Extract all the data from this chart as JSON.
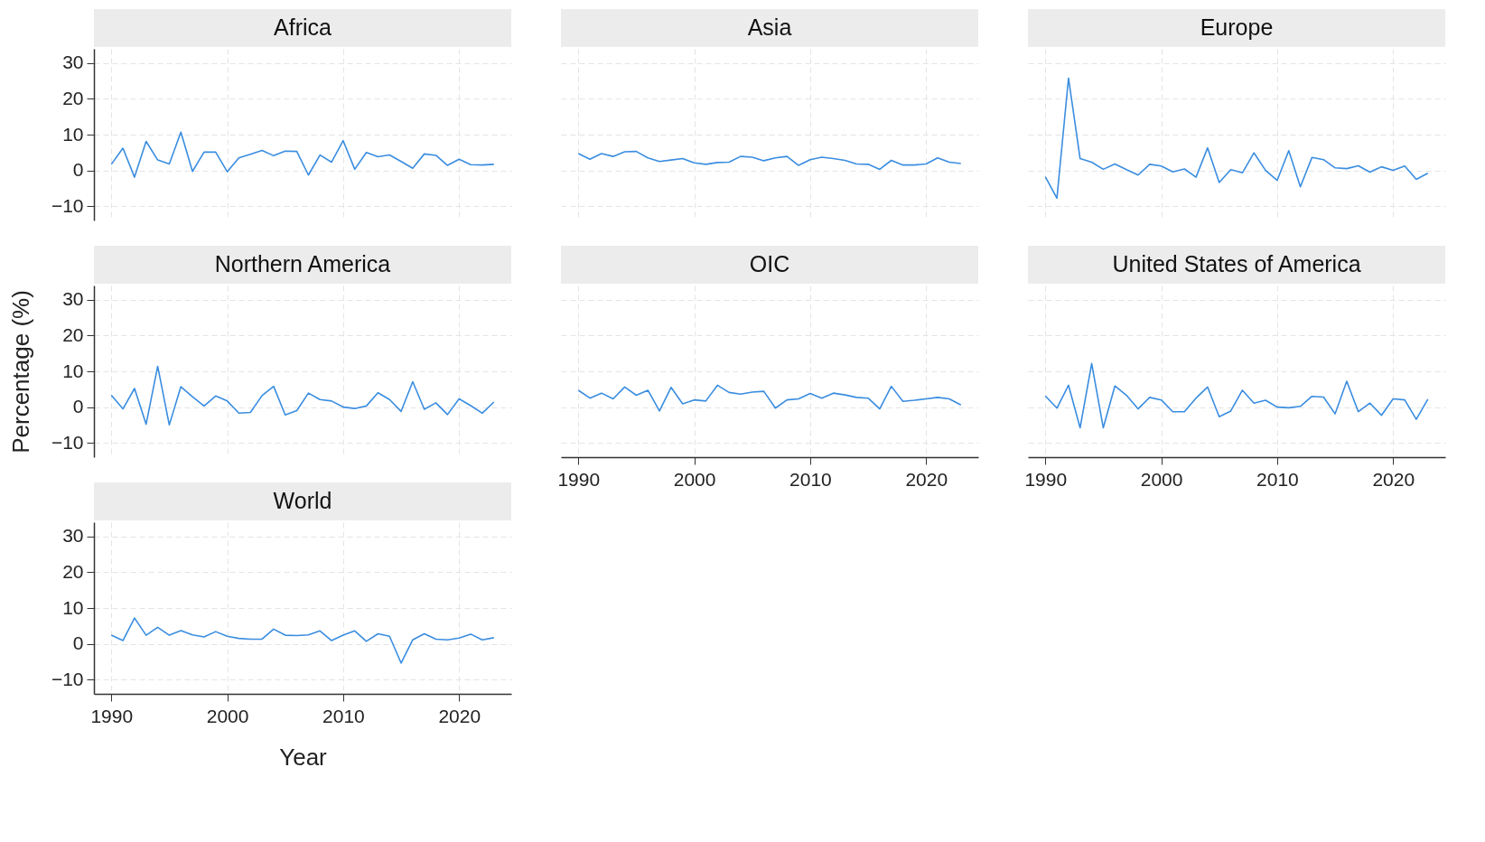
{
  "chart_data": [
    {
      "type": "line",
      "title": "Africa",
      "tick_labels": "y",
      "grid": true,
      "xlim": [
        1988.5,
        2024.5
      ],
      "ylim": [
        -14,
        34
      ],
      "xticks": [
        1990,
        2000,
        2010,
        2020
      ],
      "yticks": [
        -10,
        0,
        10,
        20,
        30
      ],
      "color": "#3a8de0",
      "x": [
        1990,
        1991,
        1992,
        1993,
        1994,
        1995,
        1996,
        1997,
        1998,
        1999,
        2000,
        2001,
        2002,
        2003,
        2004,
        2005,
        2006,
        2007,
        2008,
        2009,
        2010,
        2011,
        2012,
        2013,
        2014,
        2015,
        2016,
        2017,
        2018,
        2019,
        2020,
        2021,
        2022,
        2023
      ],
      "values": [
        1.7,
        6.2,
        -1.9,
        8.1,
        2.9,
        1.8,
        10.7,
        -0.3,
        5.1,
        5.1,
        -0.4,
        3.5,
        4.5,
        5.6,
        4.1,
        5.4,
        5.3,
        -1.3,
        4.3,
        2.3,
        8.3,
        0.3,
        5.0,
        3.8,
        4.3,
        2.5,
        0.6,
        4.6,
        4.2,
        1.4,
        3.1,
        1.6,
        1.5,
        1.7
      ]
    },
    {
      "type": "line",
      "title": "Asia",
      "tick_labels": false,
      "grid": true,
      "xlim": [
        1988.5,
        2024.5
      ],
      "ylim": [
        -14,
        34
      ],
      "xticks": [
        1990,
        2000,
        2010,
        2020
      ],
      "yticks": [
        -10,
        0,
        10,
        20,
        30
      ],
      "color": "#3a8de0",
      "x": [
        1990,
        1991,
        1992,
        1993,
        1994,
        1995,
        1996,
        1997,
        1998,
        1999,
        2000,
        2001,
        2002,
        2003,
        2004,
        2005,
        2006,
        2007,
        2008,
        2009,
        2010,
        2011,
        2012,
        2013,
        2014,
        2015,
        2016,
        2017,
        2018,
        2019,
        2020,
        2021,
        2022,
        2023
      ],
      "values": [
        4.7,
        3.1,
        4.7,
        3.9,
        5.2,
        5.3,
        3.5,
        2.5,
        2.9,
        3.3,
        2.1,
        1.7,
        2.2,
        2.3,
        3.9,
        3.7,
        2.7,
        3.5,
        3.9,
        1.4,
        3.0,
        3.7,
        3.3,
        2.8,
        1.8,
        1.7,
        0.3,
        2.8,
        1.5,
        1.5,
        1.8,
        3.5,
        2.3,
        1.9
      ]
    },
    {
      "type": "line",
      "title": "Europe",
      "tick_labels": false,
      "grid": true,
      "xlim": [
        1988.5,
        2024.5
      ],
      "ylim": [
        -14,
        34
      ],
      "xticks": [
        1990,
        2000,
        2010,
        2020
      ],
      "yticks": [
        -10,
        0,
        10,
        20,
        30
      ],
      "color": "#3a8de0",
      "x": [
        1990,
        1991,
        1992,
        1993,
        1994,
        1995,
        1996,
        1997,
        1998,
        1999,
        2000,
        2001,
        2002,
        2003,
        2004,
        2005,
        2006,
        2007,
        2008,
        2009,
        2010,
        2011,
        2012,
        2013,
        2014,
        2015,
        2016,
        2017,
        2018,
        2019,
        2020,
        2021,
        2022,
        2023
      ],
      "values": [
        -1.8,
        -7.8,
        25.8,
        3.3,
        2.3,
        0.3,
        1.8,
        0.2,
        -1.3,
        1.7,
        1.2,
        -0.4,
        0.4,
        -1.9,
        6.3,
        -3.4,
        0.2,
        -0.7,
        4.9,
        0,
        -2.8,
        5.5,
        -4.6,
        3.6,
        3.0,
        0.7,
        0.5,
        1.3,
        -0.5,
        1.0,
        0,
        1.2,
        -2.5,
        -0.8
      ]
    },
    {
      "type": "line",
      "title": "Northern America",
      "ylabel": "Percentage (%)",
      "tick_labels": "y",
      "grid": true,
      "xlim": [
        1988.5,
        2024.5
      ],
      "ylim": [
        -14,
        34
      ],
      "xticks": [
        1990,
        2000,
        2010,
        2020
      ],
      "yticks": [
        -10,
        0,
        10,
        20,
        30
      ],
      "color": "#3a8de0",
      "x": [
        1990,
        1991,
        1992,
        1993,
        1994,
        1995,
        1996,
        1997,
        1998,
        1999,
        2000,
        2001,
        2002,
        2003,
        2004,
        2005,
        2006,
        2007,
        2008,
        2009,
        2010,
        2011,
        2012,
        2013,
        2014,
        2015,
        2016,
        2017,
        2018,
        2019,
        2020,
        2021,
        2022,
        2023
      ],
      "values": [
        3.3,
        -0.5,
        5.2,
        -4.8,
        11.4,
        -5.0,
        5.7,
        2.9,
        0.3,
        3.1,
        1.7,
        -1.7,
        -1.5,
        3.2,
        5.8,
        -2.2,
        -1.0,
        3.9,
        2.1,
        1.7,
        0,
        -0.4,
        0.3,
        4.0,
        2.1,
        -1.2,
        7.1,
        -0.6,
        1.2,
        -2.1,
        2.3,
        0.4,
        -1.7,
        1.4
      ]
    },
    {
      "type": "line",
      "title": "OIC",
      "tick_labels": "x",
      "grid": true,
      "xlim": [
        1988.5,
        2024.5
      ],
      "ylim": [
        -14,
        34
      ],
      "xticks": [
        1990,
        2000,
        2010,
        2020
      ],
      "yticks": [
        -10,
        0,
        10,
        20,
        30
      ],
      "color": "#3a8de0",
      "x": [
        1990,
        1991,
        1992,
        1993,
        1994,
        1995,
        1996,
        1997,
        1998,
        1999,
        2000,
        2001,
        2002,
        2003,
        2004,
        2005,
        2006,
        2007,
        2008,
        2009,
        2010,
        2011,
        2012,
        2013,
        2014,
        2015,
        2016,
        2017,
        2018,
        2019,
        2020,
        2021,
        2022,
        2023
      ],
      "values": [
        4.7,
        2.5,
        3.9,
        2.3,
        5.6,
        3.3,
        4.7,
        -1.1,
        5.5,
        0.9,
        2.0,
        1.7,
        6.1,
        4.1,
        3.6,
        4.2,
        4.4,
        -0.3,
        2.0,
        2.3,
        3.8,
        2.5,
        3.9,
        3.4,
        2.7,
        2.5,
        -0.5,
        5.8,
        1.6,
        1.9,
        2.3,
        2.7,
        2.3,
        0.6
      ]
    },
    {
      "type": "line",
      "title": "United States of America",
      "tick_labels": "x",
      "grid": true,
      "xlim": [
        1988.5,
        2024.5
      ],
      "ylim": [
        -14,
        34
      ],
      "xticks": [
        1990,
        2000,
        2010,
        2020
      ],
      "yticks": [
        -10,
        0,
        10,
        20,
        30
      ],
      "color": "#3a8de0",
      "x": [
        1990,
        1991,
        1992,
        1993,
        1994,
        1995,
        1996,
        1997,
        1998,
        1999,
        2000,
        2001,
        2002,
        2003,
        2004,
        2005,
        2006,
        2007,
        2008,
        2009,
        2010,
        2011,
        2012,
        2013,
        2014,
        2015,
        2016,
        2017,
        2018,
        2019,
        2020,
        2021,
        2022,
        2023
      ],
      "values": [
        3.1,
        -0.3,
        6.1,
        -5.8,
        12.2,
        -5.8,
        5.9,
        3.3,
        -0.5,
        2.7,
        2.0,
        -1.3,
        -1.3,
        2.5,
        5.6,
        -2.7,
        -1.1,
        4.7,
        1.1,
        1.9,
        0,
        -0.2,
        0.2,
        3.0,
        2.8,
        -1.9,
        7.2,
        -1.3,
        1.1,
        -2.3,
        2.3,
        2.0,
        -3.4,
        2.2
      ]
    },
    {
      "type": "line",
      "title": "World",
      "xlabel": "Year",
      "grid": true,
      "xlim": [
        1988.5,
        2024.5
      ],
      "ylim": [
        -14,
        34
      ],
      "xticks": [
        1990,
        2000,
        2010,
        2020
      ],
      "yticks": [
        -10,
        0,
        10,
        20,
        30
      ],
      "color": "#3a8de0",
      "x": [
        1990,
        1991,
        1992,
        1993,
        1994,
        1995,
        1996,
        1997,
        1998,
        1999,
        2000,
        2001,
        2002,
        2003,
        2004,
        2005,
        2006,
        2007,
        2008,
        2009,
        2010,
        2011,
        2012,
        2013,
        2014,
        2015,
        2016,
        2017,
        2018,
        2019,
        2020,
        2021,
        2022,
        2023
      ],
      "values": [
        2.4,
        0.9,
        7.2,
        2.4,
        4.6,
        2.4,
        3.7,
        2.5,
        1.9,
        3.4,
        2.1,
        1.5,
        1.3,
        1.3,
        4.1,
        2.4,
        2.3,
        2.5,
        3.6,
        0.9,
        2.4,
        3.6,
        0.7,
        2.8,
        2.1,
        -5.4,
        1.1,
        2.8,
        1.3,
        1.1,
        1.6,
        2.7,
        1.1,
        1.7
      ]
    }
  ]
}
